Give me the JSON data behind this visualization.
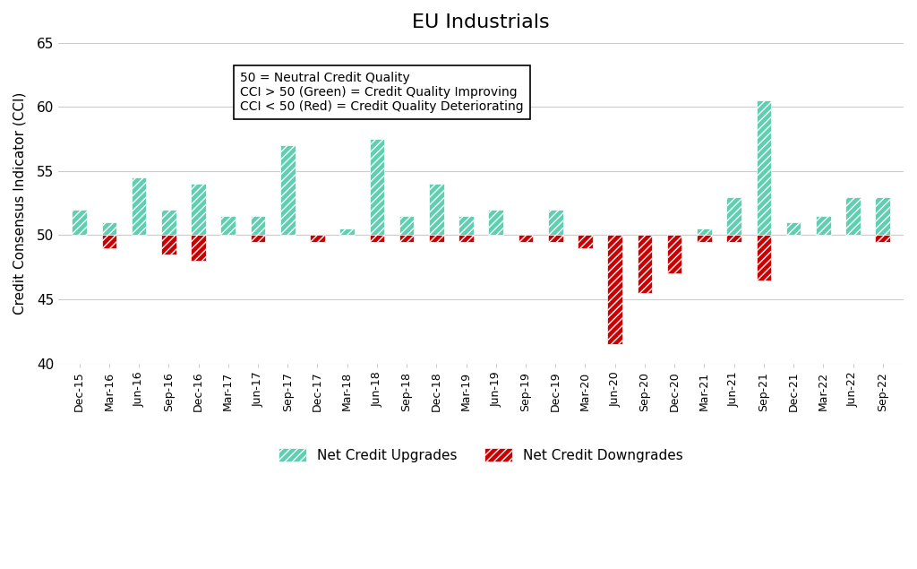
{
  "title": "EU Industrials",
  "ylabel": "Credit Consensus Indicator (CCI)",
  "ylim": [
    40,
    65
  ],
  "yticks": [
    40,
    45,
    50,
    55,
    60,
    65
  ],
  "categories": [
    "Dec-15",
    "Mar-16",
    "Jun-16",
    "Sep-16",
    "Dec-16",
    "Mar-17",
    "Jun-17",
    "Sep-17",
    "Dec-17",
    "Mar-18",
    "Jun-18",
    "Sep-18",
    "Dec-18",
    "Mar-19",
    "Jun-19",
    "Sep-19",
    "Dec-19",
    "Mar-20",
    "Jun-20",
    "Sep-20",
    "Dec-20",
    "Mar-21",
    "Jun-21",
    "Sep-21",
    "Dec-21",
    "Mar-22",
    "Jun-22",
    "Sep-22"
  ],
  "green_values": [
    52.0,
    51.0,
    54.5,
    52.0,
    54.0,
    51.5,
    51.5,
    57.0,
    null,
    50.5,
    57.5,
    51.5,
    54.0,
    51.5,
    52.0,
    null,
    52.0,
    null,
    null,
    null,
    null,
    50.5,
    53.0,
    60.5,
    51.0,
    51.5,
    53.0,
    53.0
  ],
  "red_values": [
    null,
    49.0,
    null,
    48.5,
    48.0,
    null,
    49.5,
    null,
    49.5,
    null,
    49.5,
    49.5,
    49.5,
    49.5,
    null,
    49.5,
    49.5,
    49.0,
    41.5,
    45.5,
    47.0,
    49.5,
    49.5,
    46.5,
    null,
    null,
    null,
    49.5
  ],
  "upgrade_color": "#5ecfb1",
  "downgrade_color": "#cc0000",
  "annotation_lines": [
    "50 = Neutral Credit Quality",
    "CCI > 50 (Green) = Credit Quality Improving",
    "CCI < 50 (Red) = Credit Quality Deteriorating"
  ],
  "legend_upgrade": "Net Credit Upgrades",
  "legend_downgrade": "Net Credit Downgrades",
  "background_color": "#ffffff",
  "gridcolor": "#cccccc"
}
